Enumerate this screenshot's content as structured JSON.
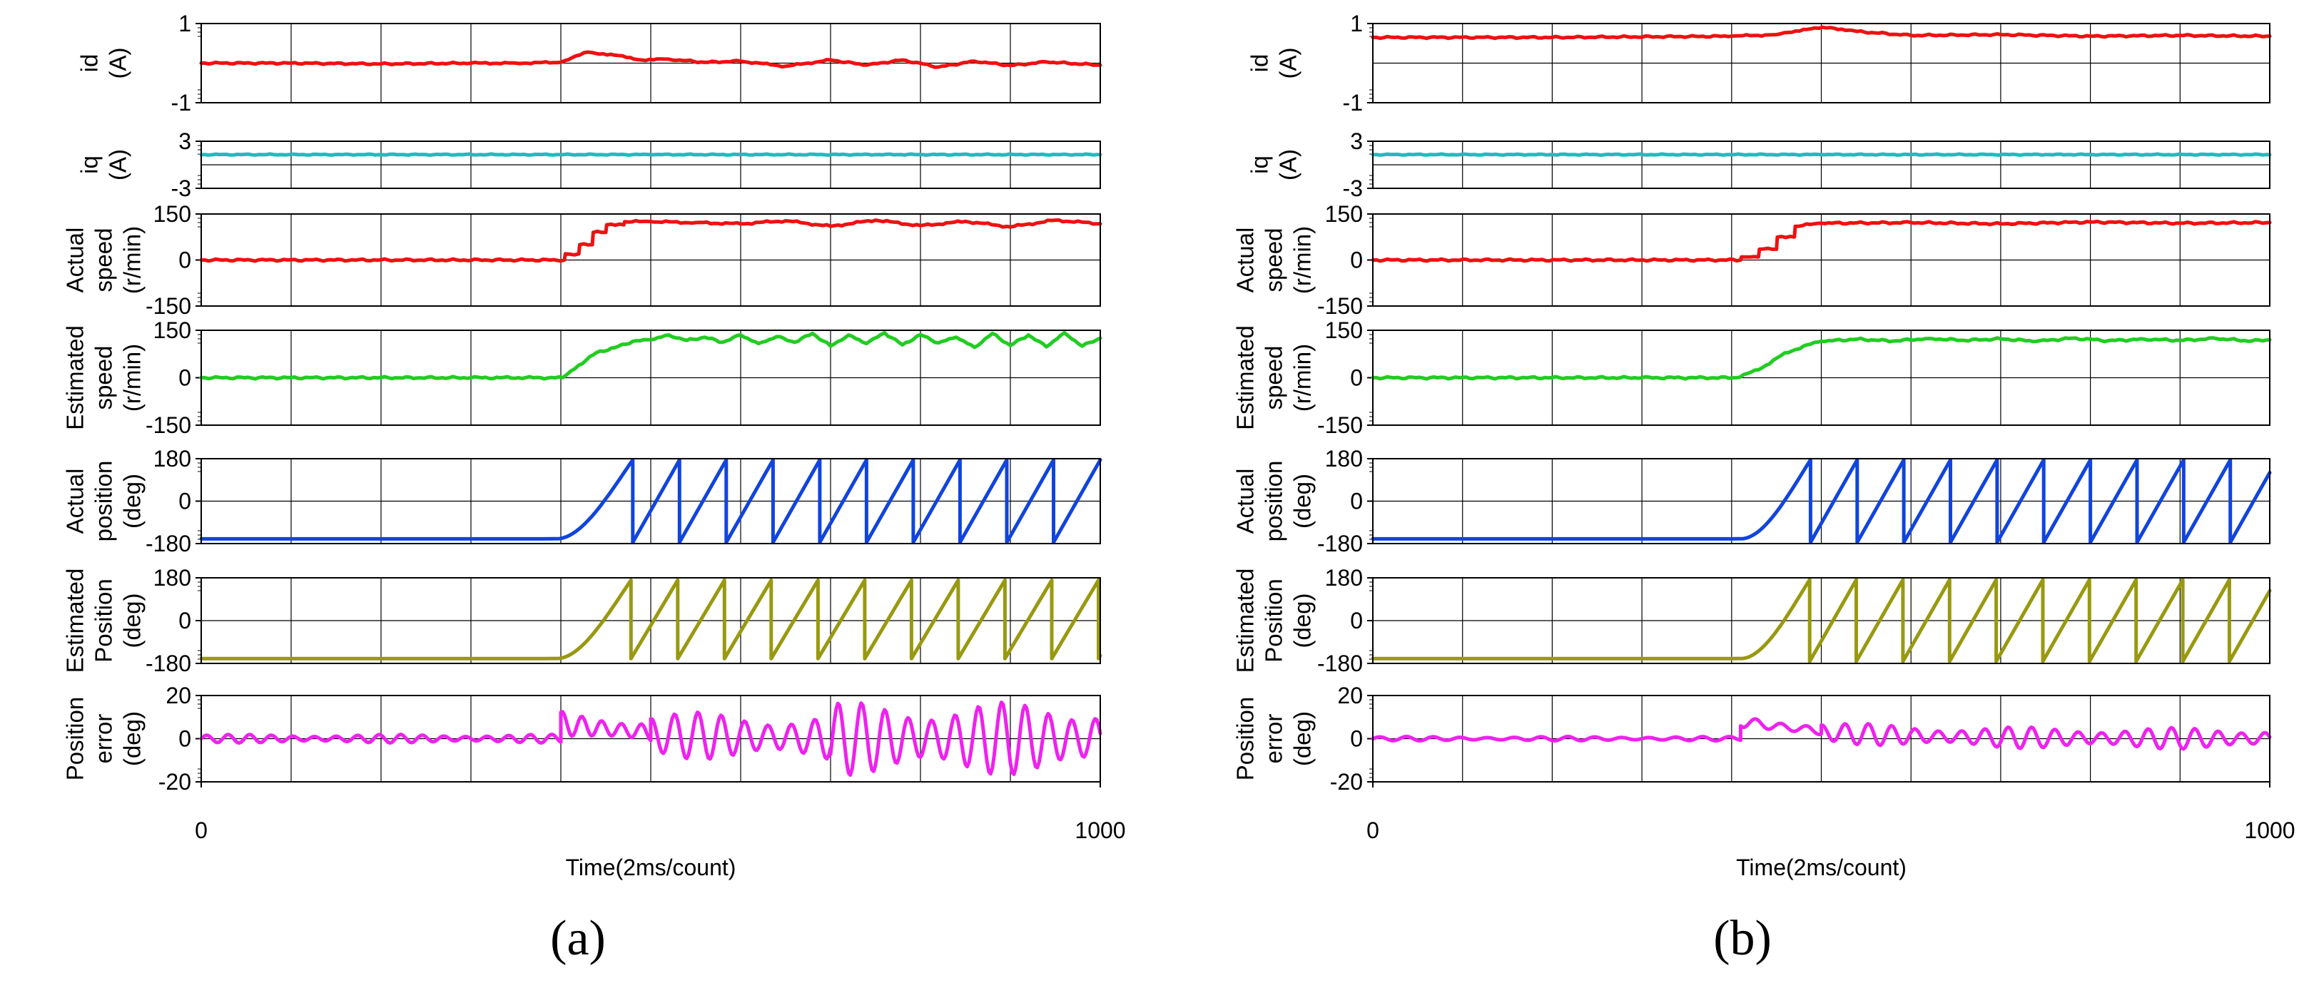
{
  "chart_data": [
    {
      "type": "line",
      "panel_label": "(a)",
      "xlabel": "Time(2ms/count)",
      "xlim": [
        0,
        1000
      ],
      "x_ticks": [
        "0",
        "1000"
      ],
      "subplots": [
        {
          "ylabel_lines": [
            "id",
            "(A)"
          ],
          "ylim": [
            -1,
            1
          ],
          "y_ticks": [
            "1",
            "-1"
          ],
          "color": "#ee1111",
          "series": [
            {
              "x": [
                0,
                100,
                200,
                300,
                350,
                400,
                430,
                460,
                490,
                520,
                560,
                600,
                650,
                700,
                740,
                780,
                820,
                860,
                900,
                940,
                1000
              ],
              "y": [
                0.0,
                0.0,
                -0.02,
                0.0,
                0.0,
                0.02,
                0.28,
                0.2,
                0.08,
                0.1,
                0.02,
                0.05,
                -0.08,
                0.08,
                -0.05,
                0.08,
                -0.1,
                0.05,
                -0.06,
                0.03,
                -0.05
              ]
            }
          ]
        },
        {
          "ylabel_lines": [
            "iq",
            "(A)"
          ],
          "ylim": [
            -3,
            3
          ],
          "y_ticks": [
            "3",
            "-3"
          ],
          "color": "#22bbbb",
          "series": [
            {
              "x": [
                0,
                250,
                500,
                750,
                1000
              ],
              "y": [
                1.3,
                1.3,
                1.3,
                1.3,
                1.3
              ]
            }
          ]
        },
        {
          "ylabel_lines": [
            "Actual",
            "speed",
            "(r/min)"
          ],
          "ylim": [
            -150,
            150
          ],
          "y_ticks": [
            "150",
            "0",
            "-150"
          ],
          "color": "#ee1111",
          "series": [
            {
              "x": [
                0,
                404,
                405,
                420,
                421,
                435,
                436,
                450,
                451,
                470,
                471,
                500,
                550,
                600,
                650,
                700,
                750,
                800,
                850,
                900,
                950,
                1000
              ],
              "y": [
                0,
                0,
                20,
                20,
                50,
                50,
                90,
                90,
                115,
                115,
                125,
                125,
                122,
                118,
                128,
                110,
                130,
                112,
                126,
                108,
                130,
                118
              ]
            }
          ]
        },
        {
          "ylabel_lines": [
            "Estimated",
            "speed",
            "(r/min)"
          ],
          "ylim": [
            -150,
            150
          ],
          "y_ticks": [
            "150",
            "0",
            "-150"
          ],
          "color": "#22cc22",
          "series": [
            {
              "x": [
                0,
                300,
                402,
                420,
                440,
                460,
                480,
                500,
                520,
                540,
                560,
                580,
                600,
                620,
                640,
                660,
                680,
                700,
                720,
                740,
                760,
                780,
                800,
                820,
                840,
                860,
                880,
                900,
                920,
                940,
                960,
                980,
                1000
              ],
              "y": [
                0,
                0,
                0,
                40,
                80,
                95,
                115,
                120,
                135,
                118,
                128,
                112,
                135,
                108,
                130,
                112,
                140,
                100,
                135,
                108,
                142,
                104,
                136,
                110,
                128,
                96,
                140,
                102,
                135,
                98,
                142,
                100,
                125
              ]
            }
          ]
        },
        {
          "ylabel_lines": [
            "Actual",
            "position",
            "(deg)"
          ],
          "ylim": [
            -180,
            180
          ],
          "y_ticks": [
            "180",
            "0",
            "-180"
          ],
          "color": "#1144dd",
          "shape": "sawtooth",
          "flat_level": -160,
          "ramp_start": 395,
          "first_peak": 480,
          "period": 52,
          "wrap_min": -175,
          "wrap_max": 175
        },
        {
          "ylabel_lines": [
            "Estimated",
            "Position",
            "(deg)"
          ],
          "ylim": [
            -180,
            180
          ],
          "y_ticks": [
            "180",
            "0",
            "-180"
          ],
          "color": "#999911",
          "shape": "sawtooth",
          "flat_level": -160,
          "ramp_start": 395,
          "first_peak": 478,
          "period": 52,
          "wrap_min": -160,
          "wrap_max": 170
        },
        {
          "ylabel_lines": [
            "Position",
            "error",
            "(deg)"
          ],
          "ylim": [
            -20,
            20
          ],
          "y_ticks": [
            "20",
            "0",
            "-20"
          ],
          "color": "#ee22ee",
          "shape": "oscillation",
          "segments": [
            {
              "x0": 0,
              "x1": 400,
              "amp": 2,
              "period": 24,
              "offset": 0
            },
            {
              "x0": 400,
              "x1": 500,
              "amp": 6,
              "period": 22,
              "offset": 7
            },
            {
              "x0": 500,
              "x1": 700,
              "amp": 11,
              "period": 26,
              "offset": 2
            },
            {
              "x0": 700,
              "x1": 1000,
              "amp": 17,
              "period": 26,
              "offset": 0
            }
          ]
        }
      ]
    },
    {
      "type": "line",
      "panel_label": "(b)",
      "xlabel": "Time(2ms/count)",
      "xlim": [
        0,
        1000
      ],
      "x_ticks": [
        "0",
        "1000"
      ],
      "subplots": [
        {
          "ylabel_lines": [
            "id",
            "(A)"
          ],
          "ylim": [
            -1,
            1
          ],
          "y_ticks": [
            "1",
            "-1"
          ],
          "color": "#ee1111",
          "series": [
            {
              "x": [
                0,
                200,
                400,
                450,
                480,
                510,
                540,
                600,
                700,
                800,
                900,
                1000
              ],
              "y": [
                0.65,
                0.65,
                0.68,
                0.72,
                0.85,
                0.9,
                0.8,
                0.7,
                0.72,
                0.68,
                0.7,
                0.68
              ]
            }
          ]
        },
        {
          "ylabel_lines": [
            "iq",
            "(A)"
          ],
          "ylim": [
            -3,
            3
          ],
          "y_ticks": [
            "3",
            "-3"
          ],
          "color": "#22bbbb",
          "series": [
            {
              "x": [
                0,
                250,
                500,
                750,
                1000
              ],
              "y": [
                1.3,
                1.3,
                1.3,
                1.3,
                1.3
              ]
            }
          ]
        },
        {
          "ylabel_lines": [
            "Actual",
            "speed",
            "(r/min)"
          ],
          "ylim": [
            -150,
            150
          ],
          "y_ticks": [
            "150",
            "0",
            "-150"
          ],
          "color": "#ee1111",
          "series": [
            {
              "x": [
                0,
                410,
                411,
                430,
                431,
                450,
                451,
                470,
                471,
                500,
                600,
                700,
                800,
                900,
                1000
              ],
              "y": [
                0,
                0,
                10,
                10,
                35,
                35,
                75,
                75,
                110,
                120,
                122,
                118,
                124,
                120,
                122
              ]
            }
          ]
        },
        {
          "ylabel_lines": [
            "Estimated",
            "speed",
            "(r/min)"
          ],
          "ylim": [
            -150,
            150
          ],
          "y_ticks": [
            "150",
            "0",
            "-150"
          ],
          "color": "#22cc22",
          "series": [
            {
              "x": [
                0,
                300,
                405,
                430,
                455,
                480,
                500,
                540,
                580,
                620,
                660,
                700,
                740,
                780,
                820,
                860,
                900,
                940,
                980,
                1000
              ],
              "y": [
                0,
                0,
                0,
                25,
                70,
                100,
                115,
                122,
                116,
                124,
                118,
                123,
                115,
                125,
                117,
                122,
                118,
                124,
                116,
                120
              ]
            }
          ]
        },
        {
          "ylabel_lines": [
            "Actual",
            "position",
            "(deg)"
          ],
          "ylim": [
            -180,
            180
          ],
          "y_ticks": [
            "180",
            "0",
            "-180"
          ],
          "color": "#1144dd",
          "shape": "sawtooth",
          "flat_level": -160,
          "ramp_start": 410,
          "first_peak": 488,
          "period": 52,
          "wrap_min": -175,
          "wrap_max": 175
        },
        {
          "ylabel_lines": [
            "Estimated",
            "Position",
            "(deg)"
          ],
          "ylim": [
            -180,
            180
          ],
          "y_ticks": [
            "180",
            "0",
            "-180"
          ],
          "color": "#999911",
          "shape": "sawtooth",
          "flat_level": -160,
          "ramp_start": 410,
          "first_peak": 487,
          "period": 52,
          "wrap_min": -172,
          "wrap_max": 172
        },
        {
          "ylabel_lines": [
            "Position",
            "error",
            "(deg)"
          ],
          "ylim": [
            -20,
            20
          ],
          "y_ticks": [
            "20",
            "0",
            "-20"
          ],
          "color": "#ee22ee",
          "shape": "oscillation",
          "segments": [
            {
              "x0": 0,
              "x1": 410,
              "amp": 1,
              "period": 30,
              "offset": 0
            },
            {
              "x0": 410,
              "x1": 500,
              "amp": 3,
              "period": 28,
              "offset": 8
            },
            {
              "x0": 500,
              "x1": 1000,
              "amp": 5,
              "period": 26,
              "offset": 3
            }
          ]
        }
      ]
    }
  ]
}
